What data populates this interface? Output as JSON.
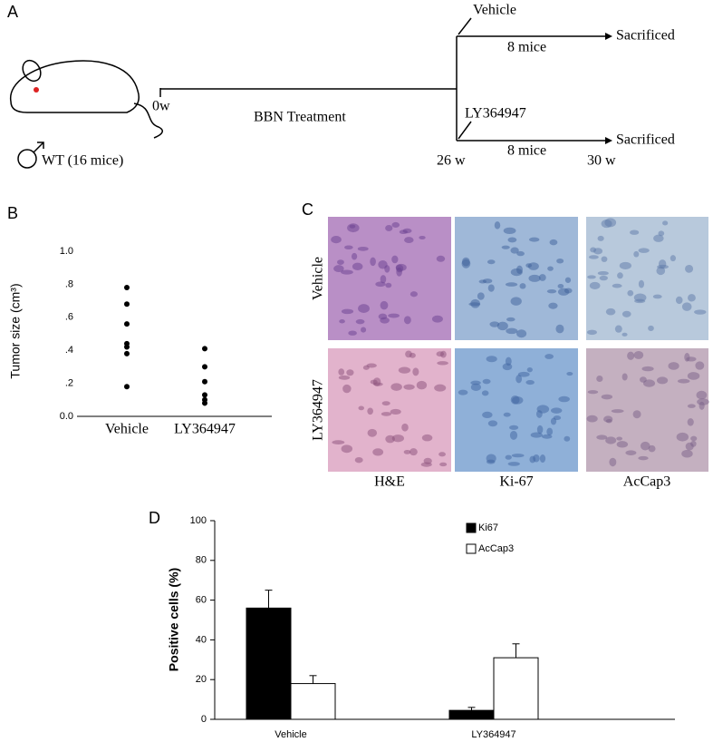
{
  "panel_labels": [
    "A",
    "B",
    "C",
    "D"
  ],
  "diagram": {
    "branch_top": "Vehicle",
    "count_top": "8 mice",
    "end_top": "Sacrificed",
    "start": "0w",
    "treatment": "BBN Treatment",
    "branch_bottom": "LY364947",
    "count_bottom": "8 mice",
    "end_bottom": "Sacrificed",
    "cohort": "WT (16 mice)",
    "time_branch": "26 w",
    "time_end": "30 w"
  },
  "micrographs": {
    "rows": [
      "Vehicle",
      "LY364947"
    ],
    "columns": [
      "H&E",
      "Ki-67",
      "AcCap3"
    ]
  },
  "chart_data": [
    {
      "type": "strip",
      "ylabel": "Tumor size (cm³)",
      "categories": [
        "Vehicle",
        "LY364947"
      ],
      "values": [
        [
          0.78,
          0.68,
          0.56,
          0.44,
          0.42,
          0.38,
          0.18
        ],
        [
          0.41,
          0.3,
          0.21,
          0.13,
          0.1,
          0.08
        ]
      ],
      "color": "#000000",
      "ylim": [
        0,
        1
      ],
      "yticks": [
        {
          "value": 0,
          "label": "0.0"
        },
        {
          "value": 0.2,
          "label": ".2"
        },
        {
          "value": 0.4,
          "label": ".4"
        },
        {
          "value": 0.6,
          "label": ".6"
        },
        {
          "value": 0.8,
          "label": ".8"
        },
        {
          "value": 1,
          "label": "1.0"
        }
      ]
    },
    {
      "type": "bar",
      "ylabel": "Positive cells (%)",
      "categories": [
        "Vehicle",
        "LY364947"
      ],
      "series": [
        {
          "name": "Ki67",
          "color": "#000000",
          "values": [
            56,
            4.5
          ],
          "errors": [
            9,
            1.5
          ]
        },
        {
          "name": "AcCap3",
          "color": "#ffffff",
          "values": [
            18,
            31
          ],
          "errors": [
            4,
            7
          ]
        }
      ],
      "ylim": [
        0,
        100
      ],
      "yticks": [
        0,
        20,
        40,
        60,
        80,
        100
      ],
      "legend": "upper right"
    }
  ]
}
